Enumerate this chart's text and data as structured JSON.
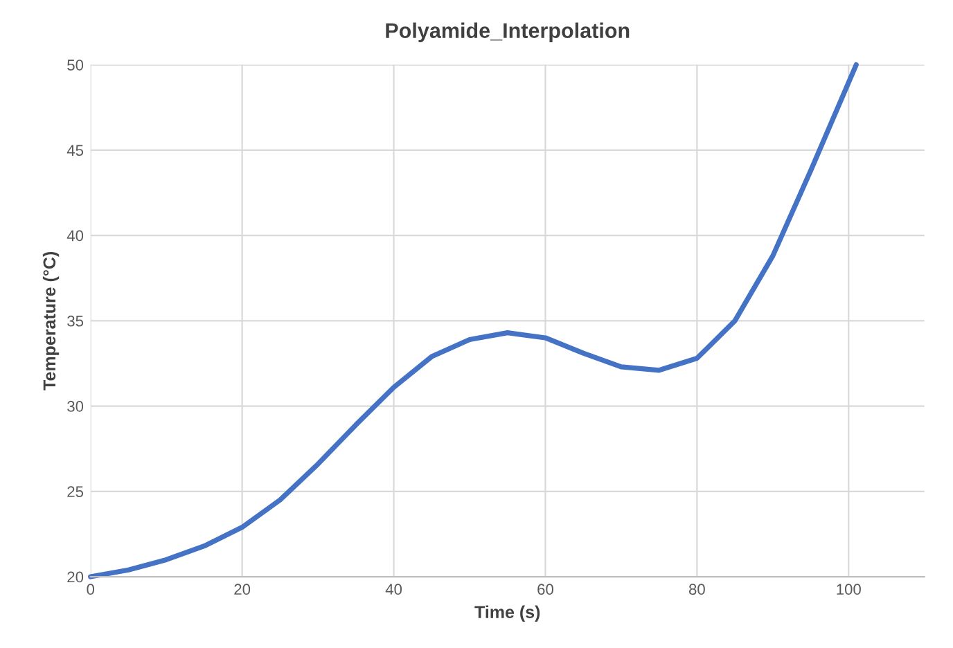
{
  "chart_data": {
    "type": "line",
    "title": "Polyamide_Interpolation",
    "xlabel": "Time (s)",
    "ylabel": "Temperature (°C)",
    "x": [
      0,
      5,
      10,
      15,
      20,
      25,
      30,
      35,
      40,
      45,
      50,
      55,
      60,
      65,
      70,
      75,
      80,
      85,
      90,
      95,
      101
    ],
    "series": [
      {
        "color": "#4472c4",
        "values": [
          20,
          20.4,
          21,
          21.8,
          22.9,
          24.5,
          26.6,
          28.9,
          31.1,
          32.9,
          33.9,
          34.3,
          34,
          33.1,
          32.3,
          32.1,
          32.8,
          35,
          38.8,
          43.8,
          50
        ]
      }
    ],
    "xlim": [
      0,
      110
    ],
    "ylim": [
      20,
      50
    ],
    "xticks": [
      0,
      20,
      40,
      60,
      80,
      100
    ],
    "yticks": [
      20,
      25,
      30,
      35,
      40,
      45,
      50
    ],
    "grid": true,
    "marker": "none",
    "line_style": "solid",
    "legend": false
  }
}
